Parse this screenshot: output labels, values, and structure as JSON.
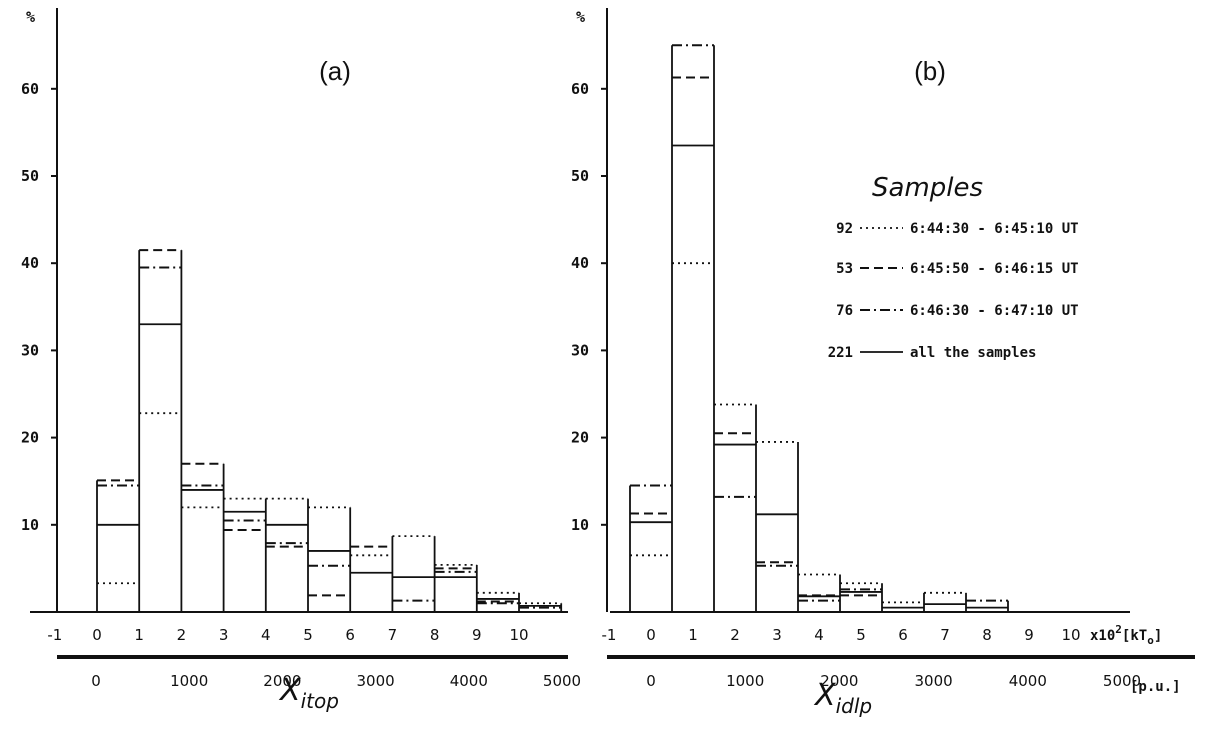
{
  "chart_data": [
    {
      "type": "bar",
      "panel_label": "(a)",
      "ylabel": "%",
      "ylim": [
        0,
        70
      ],
      "yticks": [
        "10",
        "20",
        "30",
        "40",
        "50",
        "60"
      ],
      "xlabel": "X",
      "xlabel_sub": "itop",
      "xticks_upper": [
        "-1",
        "0",
        "1",
        "2",
        "3",
        "4",
        "5",
        "6",
        "7",
        "8",
        "9",
        "10"
      ],
      "xticks_lower": [
        "0",
        "1000",
        "2000",
        "3000",
        "4000",
        "5000"
      ],
      "bins": [
        0,
        1,
        2,
        3,
        4,
        5,
        6,
        7,
        8,
        9,
        10
      ],
      "series": [
        {
          "name": "92",
          "style": "dotted",
          "values": [
            3.3,
            22.8,
            12.0,
            13.0,
            13.0,
            12.0,
            6.5,
            8.7,
            5.4,
            2.2,
            1.0
          ]
        },
        {
          "name": "53",
          "style": "dashed",
          "values": [
            15.1,
            41.5,
            17.0,
            9.4,
            7.5,
            1.9,
            7.5,
            0,
            5.0,
            1.2,
            0
          ]
        },
        {
          "name": "76",
          "style": "dashdot",
          "values": [
            14.5,
            39.5,
            14.5,
            10.5,
            7.9,
            5.3,
            0,
            1.3,
            4.6,
            1.0,
            0.5
          ]
        },
        {
          "name": "221",
          "style": "solid",
          "values": [
            10.0,
            33.0,
            14.0,
            11.5,
            10.0,
            7.0,
            4.5,
            4.0,
            4.0,
            1.5,
            0.7
          ]
        }
      ]
    },
    {
      "type": "bar",
      "panel_label": "(b)",
      "ylabel": "%",
      "ylim": [
        0,
        70
      ],
      "yticks": [
        "10",
        "20",
        "30",
        "40",
        "50",
        "60"
      ],
      "xlabel": "X",
      "xlabel_sub": "idlp",
      "xticks_upper": [
        "-1",
        "0",
        "1",
        "2",
        "3",
        "4",
        "5",
        "6",
        "7",
        "8",
        "9",
        "10"
      ],
      "xticks_upper_suffix": "x10",
      "xticks_upper_suffix_sup": "2",
      "xticks_upper_unit": "[kT",
      "xticks_upper_unit_sub": "o",
      "xticks_upper_unit_end": "]",
      "xticks_lower": [
        "0",
        "1000",
        "2000",
        "3000",
        "4000",
        "5000"
      ],
      "xticks_lower_unit": "[p.u.]",
      "bins": [
        -0.5,
        0.5,
        1.5,
        2.5,
        3.5,
        4.5,
        5.5,
        6.5,
        7.5,
        8.5
      ],
      "series": [
        {
          "name": "92",
          "style": "dotted",
          "values": [
            6.5,
            40.0,
            23.8,
            19.5,
            4.3,
            3.3,
            1.1,
            2.2,
            0,
            0
          ]
        },
        {
          "name": "53",
          "style": "dashed",
          "values": [
            11.3,
            61.3,
            20.5,
            5.7,
            1.9,
            1.9,
            0,
            0,
            0,
            0
          ]
        },
        {
          "name": "76",
          "style": "dashdot",
          "values": [
            14.5,
            65.0,
            13.2,
            5.3,
            1.3,
            2.6,
            0,
            0,
            1.3,
            0
          ]
        },
        {
          "name": "221",
          "style": "solid",
          "values": [
            10.3,
            53.5,
            19.2,
            11.2,
            1.8,
            2.3,
            0.5,
            0.9,
            0.5,
            0
          ]
        }
      ]
    }
  ],
  "legend": {
    "title": "Samples",
    "placement": "right of panel (b)",
    "entries": [
      {
        "count": "92",
        "style": "dotted",
        "text": "6:44:30 - 6:45:10 UT"
      },
      {
        "count": "53",
        "style": "dashed",
        "text": "6:45:50 - 6:46:15 UT"
      },
      {
        "count": "76",
        "style": "dashdot",
        "text": "6:46:30 - 6:47:10 UT"
      },
      {
        "count": "221",
        "style": "solid",
        "text": "all the samples"
      }
    ]
  }
}
